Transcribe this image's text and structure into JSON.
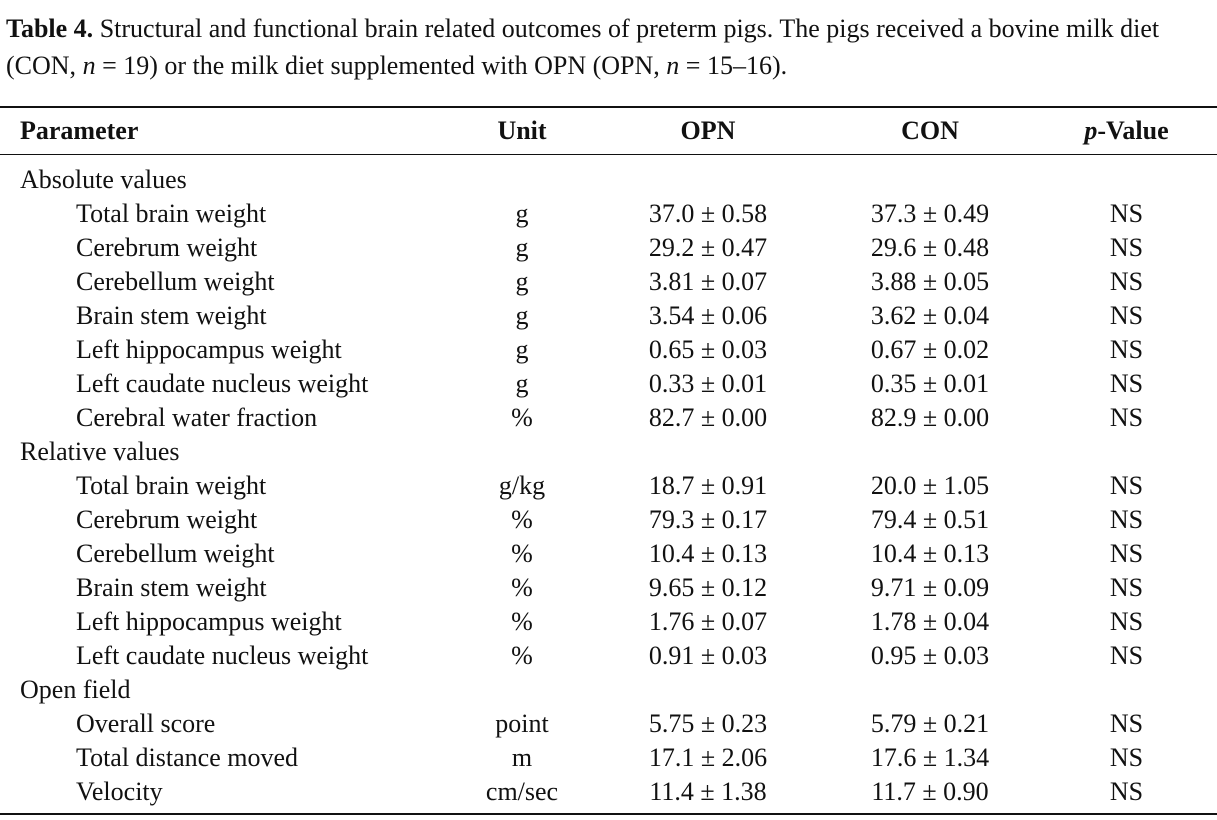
{
  "caption": {
    "label": "Table 4.",
    "segments": [
      "Structural and functional brain related outcomes of preterm pigs. The pigs received a bovine milk diet (CON, ",
      "n",
      " = 19) or the milk diet supplemented with OPN (OPN, ",
      "n",
      " = 15–16)."
    ]
  },
  "table": {
    "header": [
      "Parameter",
      "Unit",
      "OPN",
      "CON"
    ],
    "pvalue_header": {
      "italic": "p",
      "text": "-Value"
    },
    "sections": [
      {
        "title": "Absolute values",
        "rows": [
          [
            "Total brain weight",
            "g",
            "37.0 ± 0.58",
            "37.3 ± 0.49",
            "NS"
          ],
          [
            "Cerebrum weight",
            "g",
            "29.2 ± 0.47",
            "29.6 ± 0.48",
            "NS"
          ],
          [
            "Cerebellum weight",
            "g",
            "3.81 ± 0.07",
            "3.88 ± 0.05",
            "NS"
          ],
          [
            "Brain stem weight",
            "g",
            "3.54 ± 0.06",
            "3.62 ± 0.04",
            "NS"
          ],
          [
            "Left hippocampus weight",
            "g",
            "0.65 ± 0.03",
            "0.67 ± 0.02",
            "NS"
          ],
          [
            "Left caudate nucleus weight",
            "g",
            "0.33 ± 0.01",
            "0.35 ± 0.01",
            "NS"
          ],
          [
            "Cerebral water fraction",
            "%",
            "82.7 ± 0.00",
            "82.9 ± 0.00",
            "NS"
          ]
        ]
      },
      {
        "title": "Relative values",
        "rows": [
          [
            "Total brain weight",
            "g/kg",
            "18.7 ± 0.91",
            "20.0 ± 1.05",
            "NS"
          ],
          [
            "Cerebrum weight",
            "%",
            "79.3 ± 0.17",
            "79.4 ± 0.51",
            "NS"
          ],
          [
            "Cerebellum weight",
            "%",
            "10.4 ± 0.13",
            "10.4 ± 0.13",
            "NS"
          ],
          [
            "Brain stem weight",
            "%",
            "9.65 ± 0.12",
            "9.71 ± 0.09",
            "NS"
          ],
          [
            "Left hippocampus weight",
            "%",
            "1.76 ± 0.07",
            "1.78 ± 0.04",
            "NS"
          ],
          [
            "Left caudate nucleus weight",
            "%",
            "0.91 ± 0.03",
            "0.95 ± 0.03",
            "NS"
          ]
        ]
      },
      {
        "title": "Open field",
        "rows": [
          [
            "Overall score",
            "point",
            "5.75 ± 0.23",
            "5.79 ± 0.21",
            "NS"
          ],
          [
            "Total distance moved",
            "m",
            "17.1 ± 2.06",
            "17.6 ± 1.34",
            "NS"
          ],
          [
            "Velocity",
            "cm/sec",
            "11.4 ± 1.38",
            "11.7 ± 0.90",
            "NS"
          ]
        ]
      }
    ]
  }
}
